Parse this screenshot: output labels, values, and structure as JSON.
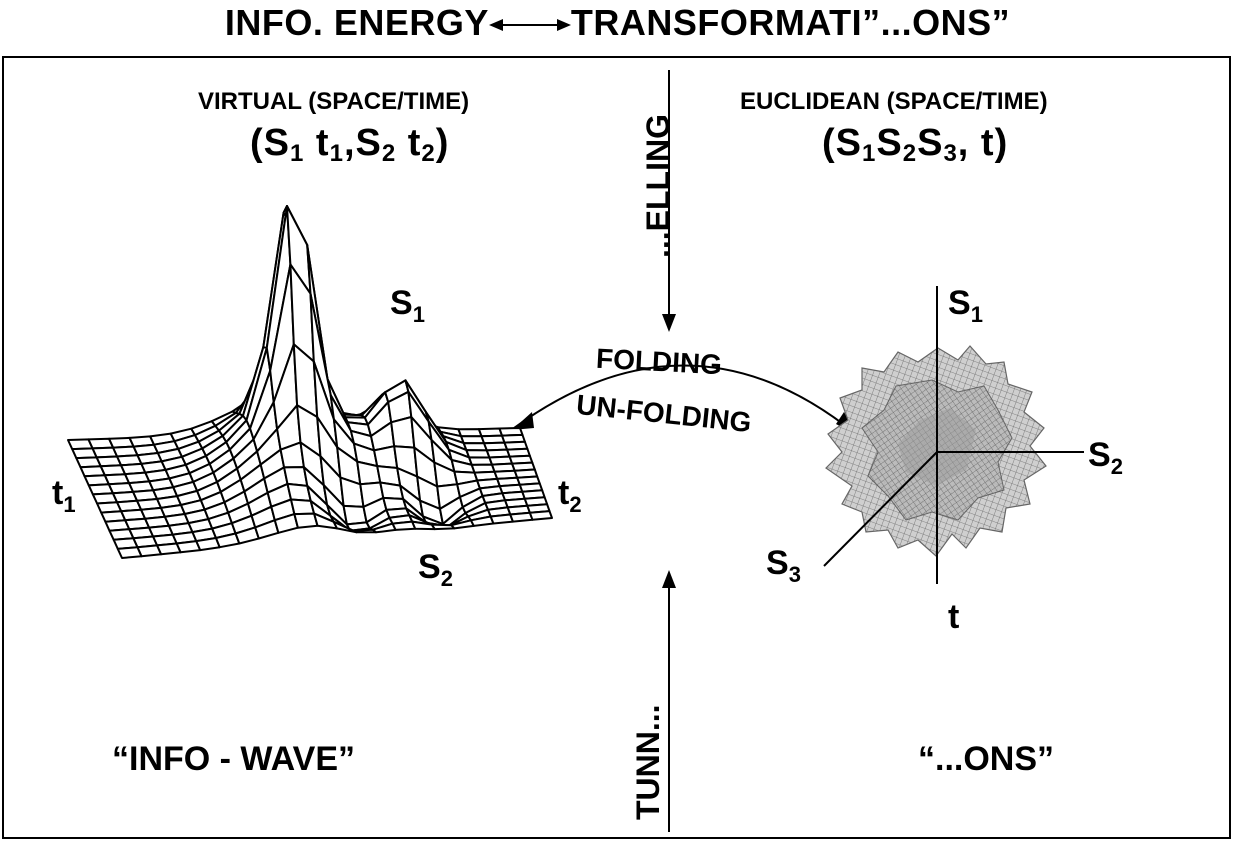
{
  "title": {
    "left": "INFO. ENERGY",
    "right": "TRANSFORMATI”...ONS”"
  },
  "left_panel": {
    "caption": "VIRTUAL (SPACE/TIME)",
    "formula": {
      "open": "(S",
      "s1": "1",
      "t": " t",
      "t1": "1",
      "comma": ",S",
      "s2": "2",
      "t2txt": " t",
      "t2": "2",
      "close": ")"
    },
    "labels": {
      "s1": "S",
      "s1_sub": "1",
      "s2": "S",
      "s2_sub": "2",
      "t1": "t",
      "t1_sub": "1",
      "t2": "t",
      "t2_sub": "2"
    },
    "bottom": "“INFO - WAVE”"
  },
  "right_panel": {
    "caption": "EUCLIDEAN (SPACE/TIME)",
    "formula": {
      "open": "(S",
      "s1": "1",
      "b": "S",
      "s2": "2",
      "c": "S",
      "s3": "3",
      "close": ", t)"
    },
    "labels": {
      "s1": "S",
      "s1_sub": "1",
      "s2": "S",
      "s2_sub": "2",
      "s3": "S",
      "s3_sub": "3",
      "t": "t"
    },
    "bottom": "“...ONS”"
  },
  "center": {
    "top_vertical": "...ELLING",
    "bottom_vertical": "TUNN...",
    "arc_top": "FOLDING",
    "arc_bottom": "UN-FOLDING"
  },
  "icons": {
    "wave_surface": "mesh-surface-icon",
    "folded_particle": "crumpled-star-icon"
  }
}
